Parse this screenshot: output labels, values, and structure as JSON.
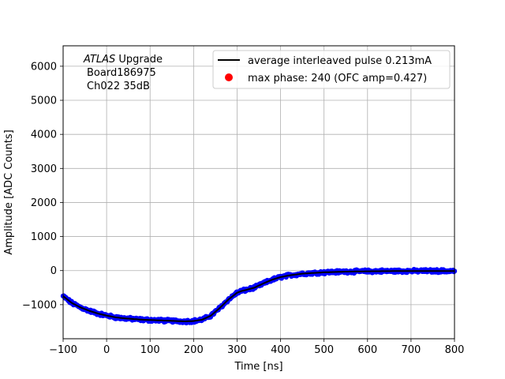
{
  "chart_data": {
    "type": "scatter",
    "xlabel": "Time [ns]",
    "ylabel": "Amplitude [ADC Counts]",
    "xlim": [
      -100,
      800
    ],
    "ylim": [
      -2000,
      6600
    ],
    "xticks": [
      -100,
      0,
      100,
      200,
      300,
      400,
      500,
      600,
      700,
      800
    ],
    "yticks": [
      -1000,
      0,
      1000,
      2000,
      3000,
      4000,
      5000,
      6000
    ],
    "grid": true,
    "annotation": {
      "line1_italic": "ATLAS",
      "line1_rest": " Upgrade",
      "line2": "Board186975",
      "line3": "Ch022 35dB"
    },
    "legend": {
      "position": "top-right",
      "entries": [
        {
          "label": "average interleaved pulse 0.213mA",
          "marker": "line",
          "color": "#000000"
        },
        {
          "label": "max phase: 240 (OFC amp=0.427)",
          "marker": "dot",
          "color": "#ff0000"
        }
      ]
    },
    "series": [
      {
        "name": "average interleaved pulse 0.213mA",
        "color": "#000000",
        "x": [
          -100,
          -80,
          -60,
          -40,
          -20,
          0,
          20,
          40,
          60,
          80,
          100,
          120,
          140,
          160,
          180,
          200,
          220,
          240,
          260,
          280,
          300,
          310,
          320,
          340,
          360,
          380,
          400,
          420,
          450,
          500,
          550,
          600,
          650,
          700,
          750,
          800
        ],
        "y": [
          -750,
          -950,
          -1080,
          -1180,
          -1260,
          -1320,
          -1370,
          -1400,
          -1420,
          -1440,
          -1450,
          -1460,
          -1470,
          -1480,
          -1490,
          -1480,
          -1440,
          -1320,
          -1100,
          -850,
          -650,
          -600,
          -570,
          -500,
          -380,
          -270,
          -190,
          -140,
          -90,
          -50,
          -30,
          -20,
          -15,
          -10,
          -10,
          -10
        ]
      }
    ],
    "scatter_color": "#0000ff"
  }
}
